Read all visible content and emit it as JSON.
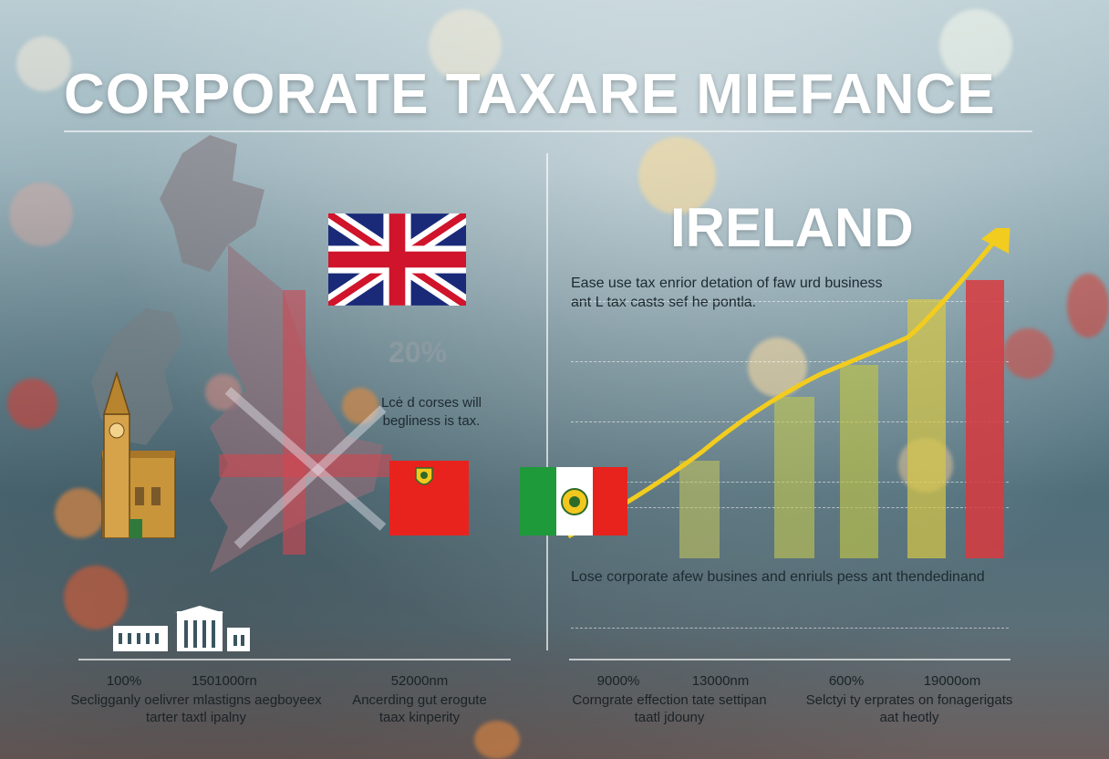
{
  "title": "CORPORATE TAXARE MIEFANCE",
  "left": {
    "rate": "20%",
    "note_line1": "Lcė d corses will",
    "note_line2": "begliness is tax."
  },
  "right": {
    "heading": "IRELAND",
    "desc_line1": "Ease use tax enrior detation of faw urd business",
    "desc_line2": "ant L tax casts sef he pontla.",
    "caption": "Lose corporate afew busines and enriuls pess ant thendedinand"
  },
  "bottom": [
    {
      "value": "100%",
      "label": ""
    },
    {
      "value": "1501000rn",
      "label": ""
    },
    {
      "value": "",
      "label": "Secligganly oelivrer mlastigns aegboyeex",
      "label2": "tarter taxtl ipalny"
    },
    {
      "value": "52000nm",
      "label": "Ancerding gut erogute",
      "label2": "taax kinperity"
    },
    {
      "value": "9000%",
      "label": "Corngrate effection tate settipan",
      "label2": "taatl jdouny"
    },
    {
      "value": "13000nm",
      "label": ""
    },
    {
      "value": "600%",
      "label": "Selctyi ty erprates on fonagerigats",
      "label2": "aat heotly"
    },
    {
      "value": "19000om",
      "label": ""
    }
  ],
  "colors": {
    "accent_yellow": "#f2cc1e",
    "bar_red": "#d83a3e",
    "flag_red": "#e8231e"
  },
  "icons": [
    "great-britain-map-icon",
    "clock-tower-icon",
    "building-icon",
    "uk-flag-icon",
    "ireland-flag-icon",
    "trend-arrow-icon"
  ]
}
